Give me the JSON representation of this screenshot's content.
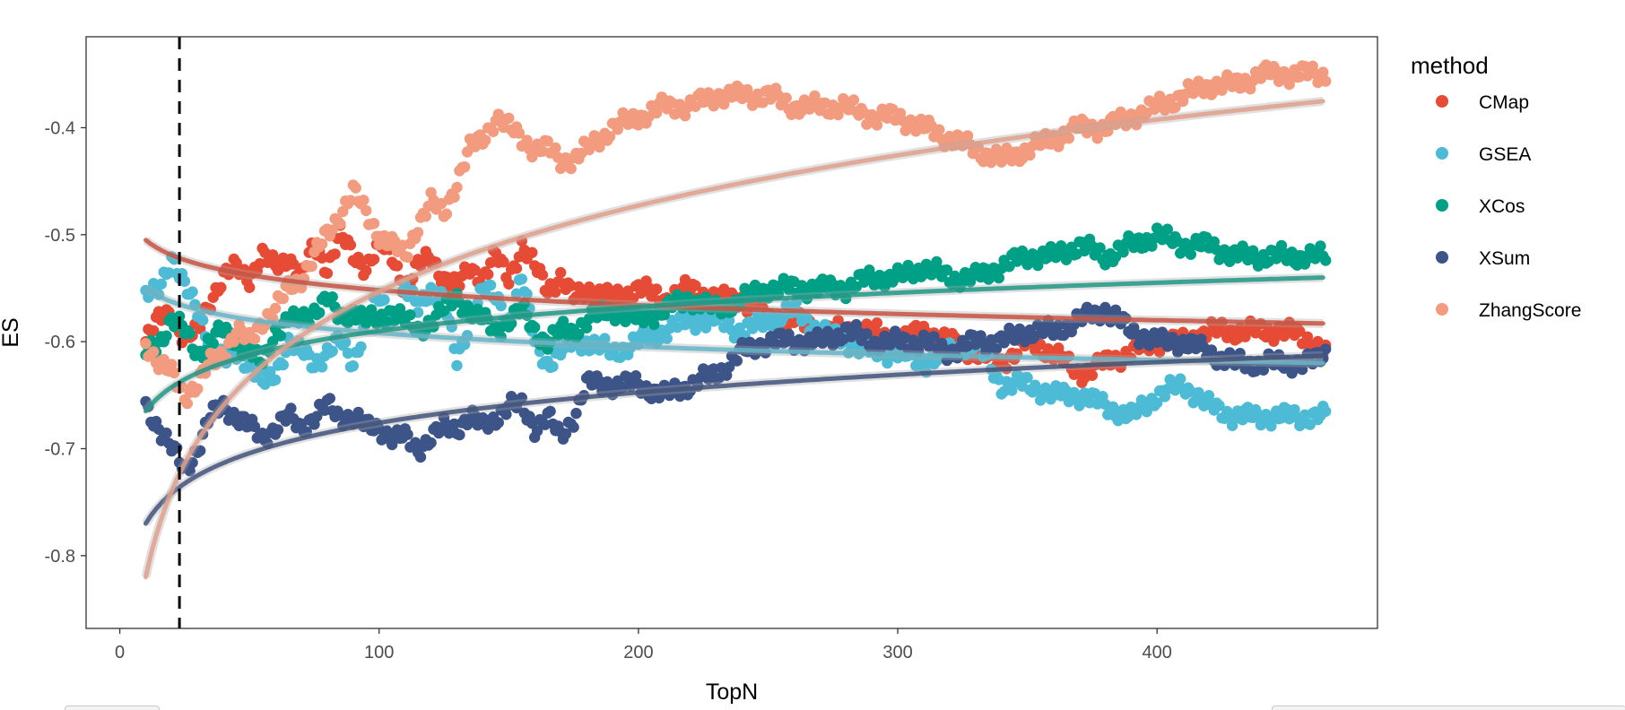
{
  "chart_data": {
    "type": "scatter",
    "xlabel": "TopN",
    "ylabel": "ES",
    "xlim": [
      -13,
      485
    ],
    "ylim": [
      -0.868,
      -0.315
    ],
    "xticks": [
      0,
      100,
      200,
      300,
      400
    ],
    "yticks": [
      -0.8,
      -0.7,
      -0.6,
      -0.5,
      -0.4
    ],
    "grid": false,
    "vline": {
      "x": 23,
      "style": "dashed"
    },
    "legend": {
      "title": "method",
      "position": "right"
    },
    "smooth": "log",
    "series": [
      {
        "name": "CMap",
        "color": "#E64B35",
        "x": [
          10,
          15,
          20,
          25,
          30,
          35,
          40,
          45,
          50,
          55,
          60,
          65,
          70,
          75,
          80,
          85,
          90,
          95,
          100,
          105,
          110,
          115,
          120,
          125,
          130,
          135,
          140,
          145,
          150,
          155,
          160,
          165,
          170,
          175,
          180,
          190,
          200,
          210,
          220,
          230,
          240,
          250,
          260,
          270,
          280,
          290,
          300,
          310,
          320,
          330,
          340,
          350,
          360,
          370,
          380,
          390,
          400,
          410,
          420,
          430,
          440,
          450,
          460,
          465
        ],
        "y": [
          -0.6,
          -0.58,
          -0.57,
          -0.6,
          -0.59,
          -0.56,
          -0.54,
          -0.53,
          -0.54,
          -0.52,
          -0.53,
          -0.52,
          -0.54,
          -0.51,
          -0.53,
          -0.5,
          -0.52,
          -0.53,
          -0.51,
          -0.52,
          -0.55,
          -0.53,
          -0.52,
          -0.54,
          -0.55,
          -0.53,
          -0.54,
          -0.52,
          -0.54,
          -0.51,
          -0.53,
          -0.55,
          -0.54,
          -0.56,
          -0.55,
          -0.56,
          -0.55,
          -0.56,
          -0.55,
          -0.56,
          -0.56,
          -0.58,
          -0.58,
          -0.59,
          -0.59,
          -0.59,
          -0.6,
          -0.59,
          -0.6,
          -0.61,
          -0.62,
          -0.6,
          -0.61,
          -0.63,
          -0.62,
          -0.61,
          -0.6,
          -0.6,
          -0.59,
          -0.59,
          -0.59,
          -0.59,
          -0.6,
          -0.61
        ],
        "fit": {
          "start": -0.505,
          "end": -0.583
        }
      },
      {
        "name": "GSEA",
        "color": "#4DBBD5",
        "x": [
          10,
          15,
          20,
          25,
          30,
          35,
          40,
          45,
          50,
          55,
          60,
          65,
          70,
          75,
          80,
          85,
          90,
          95,
          100,
          105,
          110,
          115,
          120,
          125,
          130,
          135,
          140,
          145,
          150,
          155,
          160,
          165,
          170,
          175,
          180,
          190,
          200,
          210,
          220,
          230,
          240,
          250,
          260,
          270,
          280,
          290,
          300,
          310,
          320,
          330,
          340,
          350,
          360,
          370,
          380,
          390,
          400,
          410,
          420,
          430,
          440,
          450,
          460,
          465
        ],
        "y": [
          -0.56,
          -0.55,
          -0.52,
          -0.55,
          -0.57,
          -0.6,
          -0.62,
          -0.61,
          -0.62,
          -0.64,
          -0.63,
          -0.6,
          -0.61,
          -0.62,
          -0.61,
          -0.6,
          -0.62,
          -0.58,
          -0.56,
          -0.58,
          -0.55,
          -0.57,
          -0.55,
          -0.56,
          -0.62,
          -0.58,
          -0.55,
          -0.56,
          -0.58,
          -0.54,
          -0.6,
          -0.62,
          -0.61,
          -0.6,
          -0.6,
          -0.61,
          -0.6,
          -0.59,
          -0.58,
          -0.58,
          -0.59,
          -0.58,
          -0.57,
          -0.59,
          -0.6,
          -0.61,
          -0.61,
          -0.62,
          -0.61,
          -0.6,
          -0.64,
          -0.64,
          -0.65,
          -0.65,
          -0.66,
          -0.67,
          -0.65,
          -0.64,
          -0.66,
          -0.67,
          -0.67,
          -0.67,
          -0.67,
          -0.67
        ],
        "fit": {
          "start": -0.55,
          "end": -0.62
        }
      },
      {
        "name": "XCos",
        "color": "#00A087",
        "x": [
          10,
          15,
          20,
          25,
          30,
          35,
          40,
          45,
          50,
          55,
          60,
          65,
          70,
          75,
          80,
          85,
          90,
          95,
          100,
          105,
          110,
          115,
          120,
          125,
          130,
          135,
          140,
          145,
          150,
          155,
          160,
          165,
          170,
          175,
          180,
          190,
          200,
          210,
          220,
          230,
          240,
          250,
          260,
          270,
          280,
          290,
          300,
          310,
          320,
          330,
          340,
          350,
          360,
          370,
          380,
          390,
          400,
          410,
          420,
          430,
          440,
          450,
          460,
          465
        ],
        "y": [
          -0.61,
          -0.6,
          -0.58,
          -0.59,
          -0.61,
          -0.6,
          -0.59,
          -0.6,
          -0.61,
          -0.62,
          -0.59,
          -0.58,
          -0.58,
          -0.57,
          -0.56,
          -0.58,
          -0.57,
          -0.58,
          -0.58,
          -0.57,
          -0.58,
          -0.59,
          -0.58,
          -0.57,
          -0.56,
          -0.57,
          -0.58,
          -0.59,
          -0.58,
          -0.57,
          -0.59,
          -0.6,
          -0.59,
          -0.59,
          -0.58,
          -0.57,
          -0.58,
          -0.57,
          -0.56,
          -0.57,
          -0.56,
          -0.55,
          -0.55,
          -0.55,
          -0.55,
          -0.54,
          -0.54,
          -0.53,
          -0.54,
          -0.54,
          -0.53,
          -0.52,
          -0.52,
          -0.51,
          -0.52,
          -0.51,
          -0.5,
          -0.51,
          -0.51,
          -0.52,
          -0.52,
          -0.52,
          -0.52,
          -0.52
        ],
        "fit": {
          "start": -0.665,
          "end": -0.54
        }
      },
      {
        "name": "XSum",
        "color": "#3C5488",
        "x": [
          10,
          15,
          20,
          25,
          30,
          35,
          40,
          45,
          50,
          55,
          60,
          65,
          70,
          75,
          80,
          85,
          90,
          95,
          100,
          105,
          110,
          115,
          120,
          125,
          130,
          135,
          140,
          145,
          150,
          155,
          160,
          165,
          170,
          175,
          180,
          190,
          200,
          210,
          220,
          230,
          240,
          250,
          260,
          270,
          280,
          290,
          300,
          310,
          320,
          330,
          340,
          350,
          360,
          370,
          380,
          390,
          400,
          410,
          420,
          430,
          440,
          450,
          460,
          465
        ],
        "y": [
          -0.66,
          -0.68,
          -0.7,
          -0.72,
          -0.7,
          -0.67,
          -0.66,
          -0.67,
          -0.68,
          -0.69,
          -0.68,
          -0.67,
          -0.68,
          -0.67,
          -0.66,
          -0.67,
          -0.67,
          -0.68,
          -0.68,
          -0.69,
          -0.69,
          -0.7,
          -0.69,
          -0.68,
          -0.68,
          -0.67,
          -0.68,
          -0.67,
          -0.66,
          -0.66,
          -0.68,
          -0.67,
          -0.69,
          -0.67,
          -0.64,
          -0.64,
          -0.64,
          -0.65,
          -0.64,
          -0.63,
          -0.61,
          -0.6,
          -0.6,
          -0.6,
          -0.59,
          -0.6,
          -0.6,
          -0.6,
          -0.61,
          -0.6,
          -0.6,
          -0.59,
          -0.59,
          -0.58,
          -0.57,
          -0.59,
          -0.6,
          -0.6,
          -0.61,
          -0.62,
          -0.62,
          -0.62,
          -0.62,
          -0.61
        ],
        "fit": {
          "start": -0.77,
          "end": -0.613
        }
      },
      {
        "name": "ZhangScore",
        "color": "#F39B7F",
        "x": [
          10,
          15,
          20,
          25,
          30,
          35,
          40,
          45,
          50,
          55,
          60,
          65,
          70,
          75,
          80,
          85,
          90,
          95,
          100,
          105,
          110,
          115,
          120,
          125,
          130,
          135,
          140,
          145,
          150,
          155,
          160,
          165,
          170,
          175,
          180,
          190,
          200,
          210,
          220,
          230,
          240,
          250,
          260,
          270,
          280,
          290,
          300,
          310,
          320,
          330,
          340,
          350,
          360,
          370,
          380,
          390,
          400,
          410,
          420,
          430,
          440,
          450,
          460,
          465
        ],
        "y": [
          -0.6,
          -0.62,
          -0.63,
          -0.65,
          -0.64,
          -0.62,
          -0.61,
          -0.59,
          -0.6,
          -0.58,
          -0.57,
          -0.55,
          -0.54,
          -0.52,
          -0.5,
          -0.48,
          -0.46,
          -0.48,
          -0.5,
          -0.51,
          -0.52,
          -0.49,
          -0.47,
          -0.48,
          -0.45,
          -0.42,
          -0.41,
          -0.39,
          -0.4,
          -0.41,
          -0.42,
          -0.42,
          -0.43,
          -0.43,
          -0.42,
          -0.4,
          -0.39,
          -0.38,
          -0.38,
          -0.37,
          -0.37,
          -0.37,
          -0.38,
          -0.38,
          -0.38,
          -0.39,
          -0.39,
          -0.4,
          -0.41,
          -0.42,
          -0.43,
          -0.42,
          -0.41,
          -0.4,
          -0.4,
          -0.39,
          -0.38,
          -0.37,
          -0.36,
          -0.36,
          -0.35,
          -0.35,
          -0.35,
          -0.35
        ],
        "fit": {
          "start": -0.82,
          "end": -0.375
        }
      }
    ]
  }
}
